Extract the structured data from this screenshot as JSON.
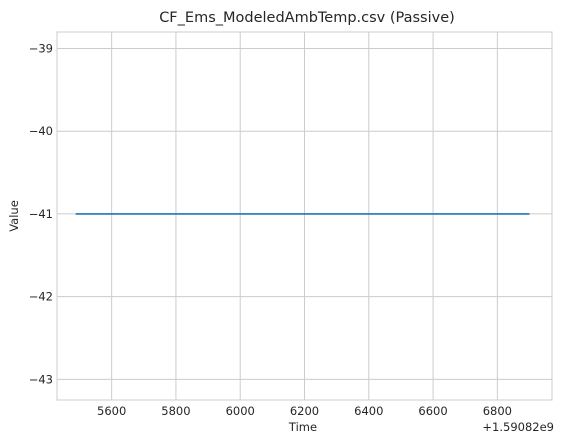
{
  "chart_data": {
    "type": "line",
    "title": "CF_Ems_ModeledAmbTemp.csv (Passive)",
    "xlabel": "Time",
    "ylabel": "Value",
    "x_offset_label": "+1.59082e9",
    "xlim": [
      5430,
      6970
    ],
    "ylim": [
      -43.25,
      -38.8
    ],
    "x_ticks": [
      5600,
      5800,
      6000,
      6200,
      6400,
      6600,
      6800
    ],
    "y_ticks": [
      -39,
      -40,
      -41,
      -42,
      -43
    ],
    "x_tick_labels": [
      "5600",
      "5800",
      "6000",
      "6200",
      "6400",
      "6600",
      "6800"
    ],
    "y_tick_labels": [
      "−39",
      "−40",
      "−41",
      "−42",
      "−43"
    ],
    "grid": true,
    "series": [
      {
        "x": [
          5488,
          6900
        ],
        "values": [
          -41,
          -41
        ],
        "color": "#1f77b4"
      }
    ]
  }
}
